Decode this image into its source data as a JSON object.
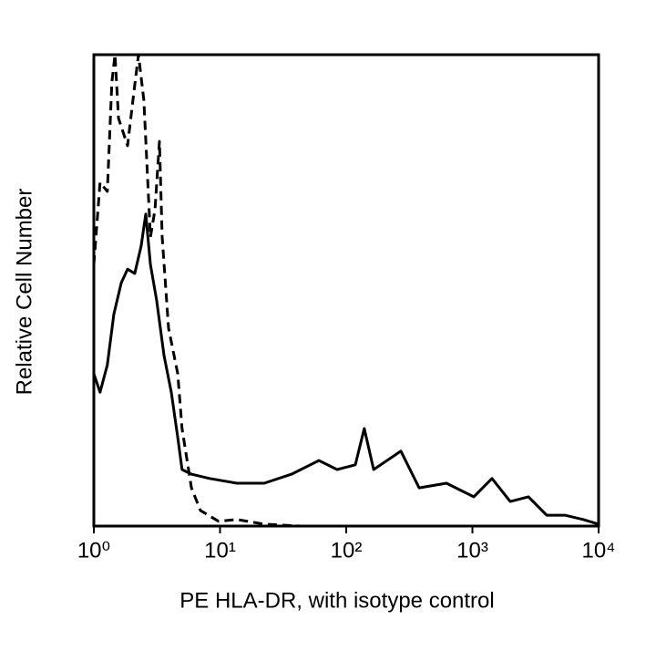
{
  "chart_data": {
    "type": "line",
    "x_label": "PE HLA-DR, with isotype control",
    "y_label": "Relative Cell Number",
    "xscale": "log",
    "xlim": [
      1,
      10000
    ],
    "xticks": [
      {
        "value": 1,
        "label": "10⁰"
      },
      {
        "value": 10,
        "label": "10¹"
      },
      {
        "value": 100,
        "label": "10²"
      },
      {
        "value": 1000,
        "label": "10³"
      },
      {
        "value": 10000,
        "label": "10⁴"
      }
    ],
    "ylim": [
      0,
      100
    ],
    "series": [
      {
        "color": "#000000",
        "dash": "solid",
        "x": [
          1,
          1.12,
          1.28,
          1.44,
          1.65,
          1.85,
          2.11,
          2.37,
          2.58,
          2.81,
          3.15,
          3.6,
          4.11,
          4.62,
          5.0,
          5.93,
          8.26,
          13.6,
          22.4,
          36.9,
          60.7,
          84.7,
          118,
          139,
          165,
          271,
          378,
          623,
          1026,
          1429,
          1995,
          2780,
          3875,
          5404,
          7534,
          10000
        ],
        "values": [
          32.3,
          28.4,
          34.2,
          44.9,
          51.6,
          54.5,
          53.6,
          59.4,
          66.2,
          55.5,
          47.8,
          36.2,
          28.4,
          18.8,
          12.0,
          11.0,
          10.1,
          9.1,
          9.1,
          11.0,
          13.9,
          12.0,
          13.0,
          20.7,
          12.0,
          15.9,
          8.1,
          9.1,
          6.2,
          10.1,
          5.2,
          6.2,
          2.3,
          2.3,
          1.4,
          0.4
        ]
      },
      {
        "color": "#000000",
        "dash": "dashed",
        "x": [
          1,
          1.12,
          1.28,
          1.39,
          1.47,
          1.57,
          1.85,
          2.08,
          2.26,
          2.49,
          2.81,
          3.05,
          3.31,
          3.48,
          3.91,
          4.62,
          5.0,
          5.93,
          7.0,
          9.75,
          13.6,
          22.4,
          43.5,
          139
        ],
        "values": [
          55.5,
          72.9,
          71.0,
          94.2,
          100,
          86.5,
          80.7,
          92.3,
          100,
          90.3,
          61.3,
          67.1,
          81.6,
          61.3,
          42.0,
          32.3,
          20.7,
          8.1,
          3.3,
          1.0,
          1.4,
          0.4,
          0,
          0
        ]
      }
    ]
  }
}
